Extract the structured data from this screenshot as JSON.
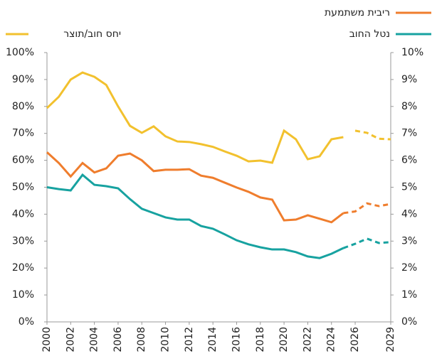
{
  "chart_data": {
    "type": "line",
    "x": [
      2000,
      2001,
      2002,
      2003,
      2004,
      2005,
      2006,
      2007,
      2008,
      2009,
      2010,
      2011,
      2012,
      2013,
      2014,
      2015,
      2016,
      2017,
      2018,
      2019,
      2020,
      2021,
      2022,
      2023,
      2024,
      2025,
      2026,
      2027,
      2028,
      2029
    ],
    "xlim": [
      2000,
      2029
    ],
    "xticks": [
      2000,
      2002,
      2004,
      2006,
      2008,
      2010,
      2012,
      2014,
      2016,
      2018,
      2020,
      2022,
      2024,
      2026,
      2029
    ],
    "ylim": [
      0,
      100
    ],
    "yticks": [
      {
        "value": 0,
        "label": "0%"
      },
      {
        "value": 10,
        "label": "10%"
      },
      {
        "value": 20,
        "label": "20%"
      },
      {
        "value": 30,
        "label": "30%"
      },
      {
        "value": 40,
        "label": "40%"
      },
      {
        "value": 50,
        "label": "50%"
      },
      {
        "value": 60,
        "label": "60%"
      },
      {
        "value": 70,
        "label": "70%"
      },
      {
        "value": 80,
        "label": "80%"
      },
      {
        "value": 90,
        "label": "90%"
      },
      {
        "value": 100,
        "label": "100%"
      }
    ],
    "y2lim": [
      0,
      10
    ],
    "y2ticks": [
      {
        "value": 0,
        "label": "0%"
      },
      {
        "value": 1,
        "label": "1%"
      },
      {
        "value": 2,
        "label": "2%"
      },
      {
        "value": 3,
        "label": "3%"
      },
      {
        "value": 4,
        "label": "4%"
      },
      {
        "value": 5,
        "label": "5%"
      },
      {
        "value": 6,
        "label": "6%"
      },
      {
        "value": 7,
        "label": "7%"
      },
      {
        "value": 8,
        "label": "8%"
      },
      {
        "value": 9,
        "label": "9%"
      },
      {
        "value": 10,
        "label": "10%"
      }
    ],
    "series": [
      {
        "name": "יחס חוב/תוצר",
        "color": "#f2c12e",
        "axis": "y",
        "values": [
          79.4,
          83.6,
          90,
          92.6,
          91,
          88,
          80,
          72.8,
          70.2,
          72.6,
          68.9,
          67,
          66.8,
          66,
          65,
          63.3,
          61.7,
          59.6,
          59.9,
          59.1,
          71,
          67.8,
          60.4,
          61.5,
          67.8,
          68.6,
          null,
          null,
          null,
          null
        ],
        "projection": [
          null,
          null,
          null,
          null,
          null,
          null,
          null,
          null,
          null,
          null,
          null,
          null,
          null,
          null,
          null,
          null,
          null,
          null,
          null,
          null,
          null,
          null,
          null,
          null,
          null,
          null,
          71,
          70.2,
          68,
          67.8
        ]
      },
      {
        "name": "ריבית משתמעת",
        "color": "#ef7d2d",
        "axis": "y2",
        "values": [
          6.3,
          5.9,
          5.4,
          5.9,
          5.55,
          5.7,
          6.17,
          6.25,
          6.0,
          5.6,
          5.65,
          5.65,
          5.67,
          5.43,
          5.35,
          5.17,
          4.99,
          4.83,
          4.62,
          4.54,
          3.77,
          3.8,
          3.96,
          3.83,
          3.7,
          4.04,
          null,
          null,
          null,
          null
        ],
        "projection": [
          null,
          null,
          null,
          null,
          null,
          null,
          null,
          null,
          null,
          null,
          null,
          null,
          null,
          null,
          null,
          null,
          null,
          null,
          null,
          null,
          null,
          null,
          null,
          null,
          null,
          4.04,
          4.1,
          4.4,
          4.3,
          4.38
        ]
      },
      {
        "name": "נטל החוב",
        "color": "#17a2a0",
        "axis": "y2",
        "values": [
          5.0,
          4.93,
          4.88,
          5.46,
          5.09,
          5.04,
          4.96,
          4.56,
          4.2,
          4.04,
          3.88,
          3.8,
          3.8,
          3.56,
          3.46,
          3.25,
          3.03,
          2.88,
          2.77,
          2.69,
          2.69,
          2.59,
          2.43,
          2.37,
          2.53,
          2.74,
          null,
          null,
          null,
          null
        ],
        "projection": [
          null,
          null,
          null,
          null,
          null,
          null,
          null,
          null,
          null,
          null,
          null,
          null,
          null,
          null,
          null,
          null,
          null,
          null,
          null,
          null,
          null,
          null,
          null,
          null,
          null,
          2.74,
          2.9,
          3.09,
          2.93,
          2.96
        ]
      }
    ]
  }
}
